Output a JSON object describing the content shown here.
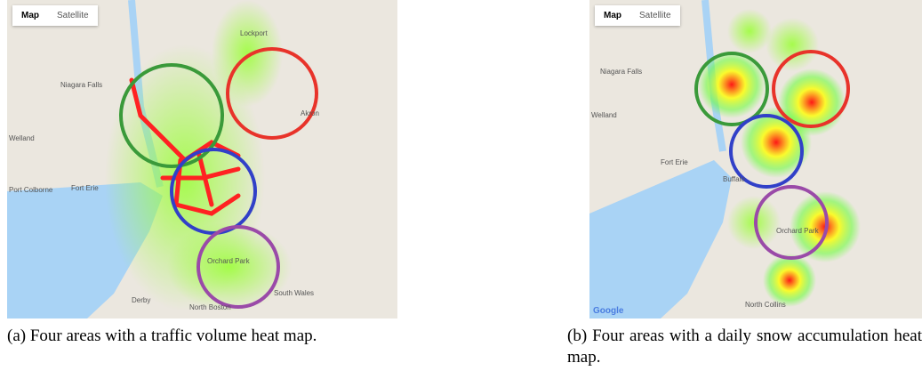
{
  "panels": [
    {
      "tabs": [
        "Map",
        "Satellite"
      ],
      "places": [
        "Niagara Falls",
        "Welland",
        "Port Colborne",
        "Fort Erie",
        "Lockport",
        "Akron",
        "Orchard Park",
        "North Boston",
        "Derby",
        "South Wales"
      ],
      "caption": "(a) Four areas with a traffic volume heat map."
    },
    {
      "tabs": [
        "Map",
        "Satellite"
      ],
      "places": [
        "Niagara Falls",
        "Welland",
        "Buffalo",
        "Fort Erie",
        "Orchard Park",
        "North Collins",
        "Google"
      ],
      "caption": "(b) Four areas with a daily snow accumulation heat map."
    }
  ]
}
